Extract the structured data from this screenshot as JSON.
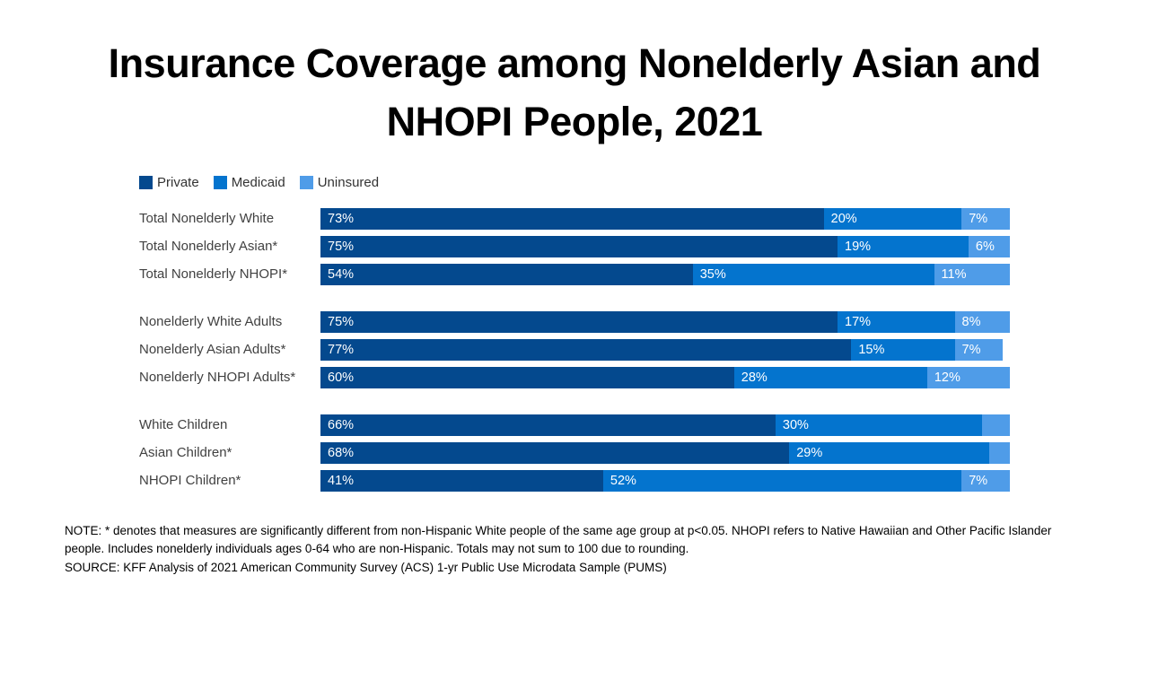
{
  "title": {
    "full": "Insurance Coverage among Nonelderly Asian and NHOPI People, 2021",
    "line1": "Insurance Coverage among Nonelderly Asian and",
    "line2": "NHOPI People, 2021"
  },
  "legend": [
    {
      "label": "Private",
      "color": "#04498e"
    },
    {
      "label": "Medicaid",
      "color": "#0474ce"
    },
    {
      "label": "Uninsured",
      "color": "#4f9ce8"
    }
  ],
  "chart_data": {
    "type": "bar",
    "stacked": true,
    "orientation": "horizontal",
    "x_max": 100,
    "series_names": [
      "Private",
      "Medicaid",
      "Uninsured"
    ],
    "title": "Insurance Coverage among Nonelderly Asian and NHOPI People, 2021",
    "groups": [
      {
        "name": "totals",
        "rows": [
          {
            "label": "Total Nonelderly White",
            "values": [
              73,
              20,
              7
            ],
            "value_labels": [
              "73%",
              "20%",
              "7%"
            ]
          },
          {
            "label": "Total Nonelderly Asian*",
            "values": [
              75,
              19,
              6
            ],
            "value_labels": [
              "75%",
              "19%",
              "6%"
            ]
          },
          {
            "label": "Total Nonelderly NHOPI*",
            "values": [
              54,
              35,
              11
            ],
            "value_labels": [
              "54%",
              "35%",
              "11%"
            ]
          }
        ]
      },
      {
        "name": "adults",
        "rows": [
          {
            "label": "Nonelderly White Adults",
            "values": [
              75,
              17,
              8
            ],
            "value_labels": [
              "75%",
              "17%",
              "8%"
            ]
          },
          {
            "label": "Nonelderly Asian Adults*",
            "values": [
              77,
              15,
              7
            ],
            "value_labels": [
              "77%",
              "15%",
              "7%"
            ]
          },
          {
            "label": "Nonelderly NHOPI Adults*",
            "values": [
              60,
              28,
              12
            ],
            "value_labels": [
              "60%",
              "28%",
              "12%"
            ]
          }
        ]
      },
      {
        "name": "children",
        "rows": [
          {
            "label": "White Children",
            "values": [
              66,
              30,
              4
            ],
            "value_labels": [
              "66%",
              "30%",
              ""
            ]
          },
          {
            "label": "Asian Children*",
            "values": [
              68,
              29,
              3
            ],
            "value_labels": [
              "68%",
              "29%",
              ""
            ]
          },
          {
            "label": "NHOPI Children*",
            "values": [
              41,
              52,
              7
            ],
            "value_labels": [
              "41%",
              "52%",
              "7%"
            ]
          }
        ]
      }
    ]
  },
  "notes": {
    "note": "NOTE: * denotes that measures are significantly different from non-Hispanic White people of the same age group at p<0.05. NHOPI refers to Native Hawaiian and Other Pacific Islander people. Includes nonelderly individuals ages 0-64 who are non-Hispanic. Totals may not sum to 100 due to rounding.",
    "source": "SOURCE: KFF Analysis of 2021 American Community Survey (ACS) 1-yr Public Use Microdata Sample (PUMS)"
  }
}
